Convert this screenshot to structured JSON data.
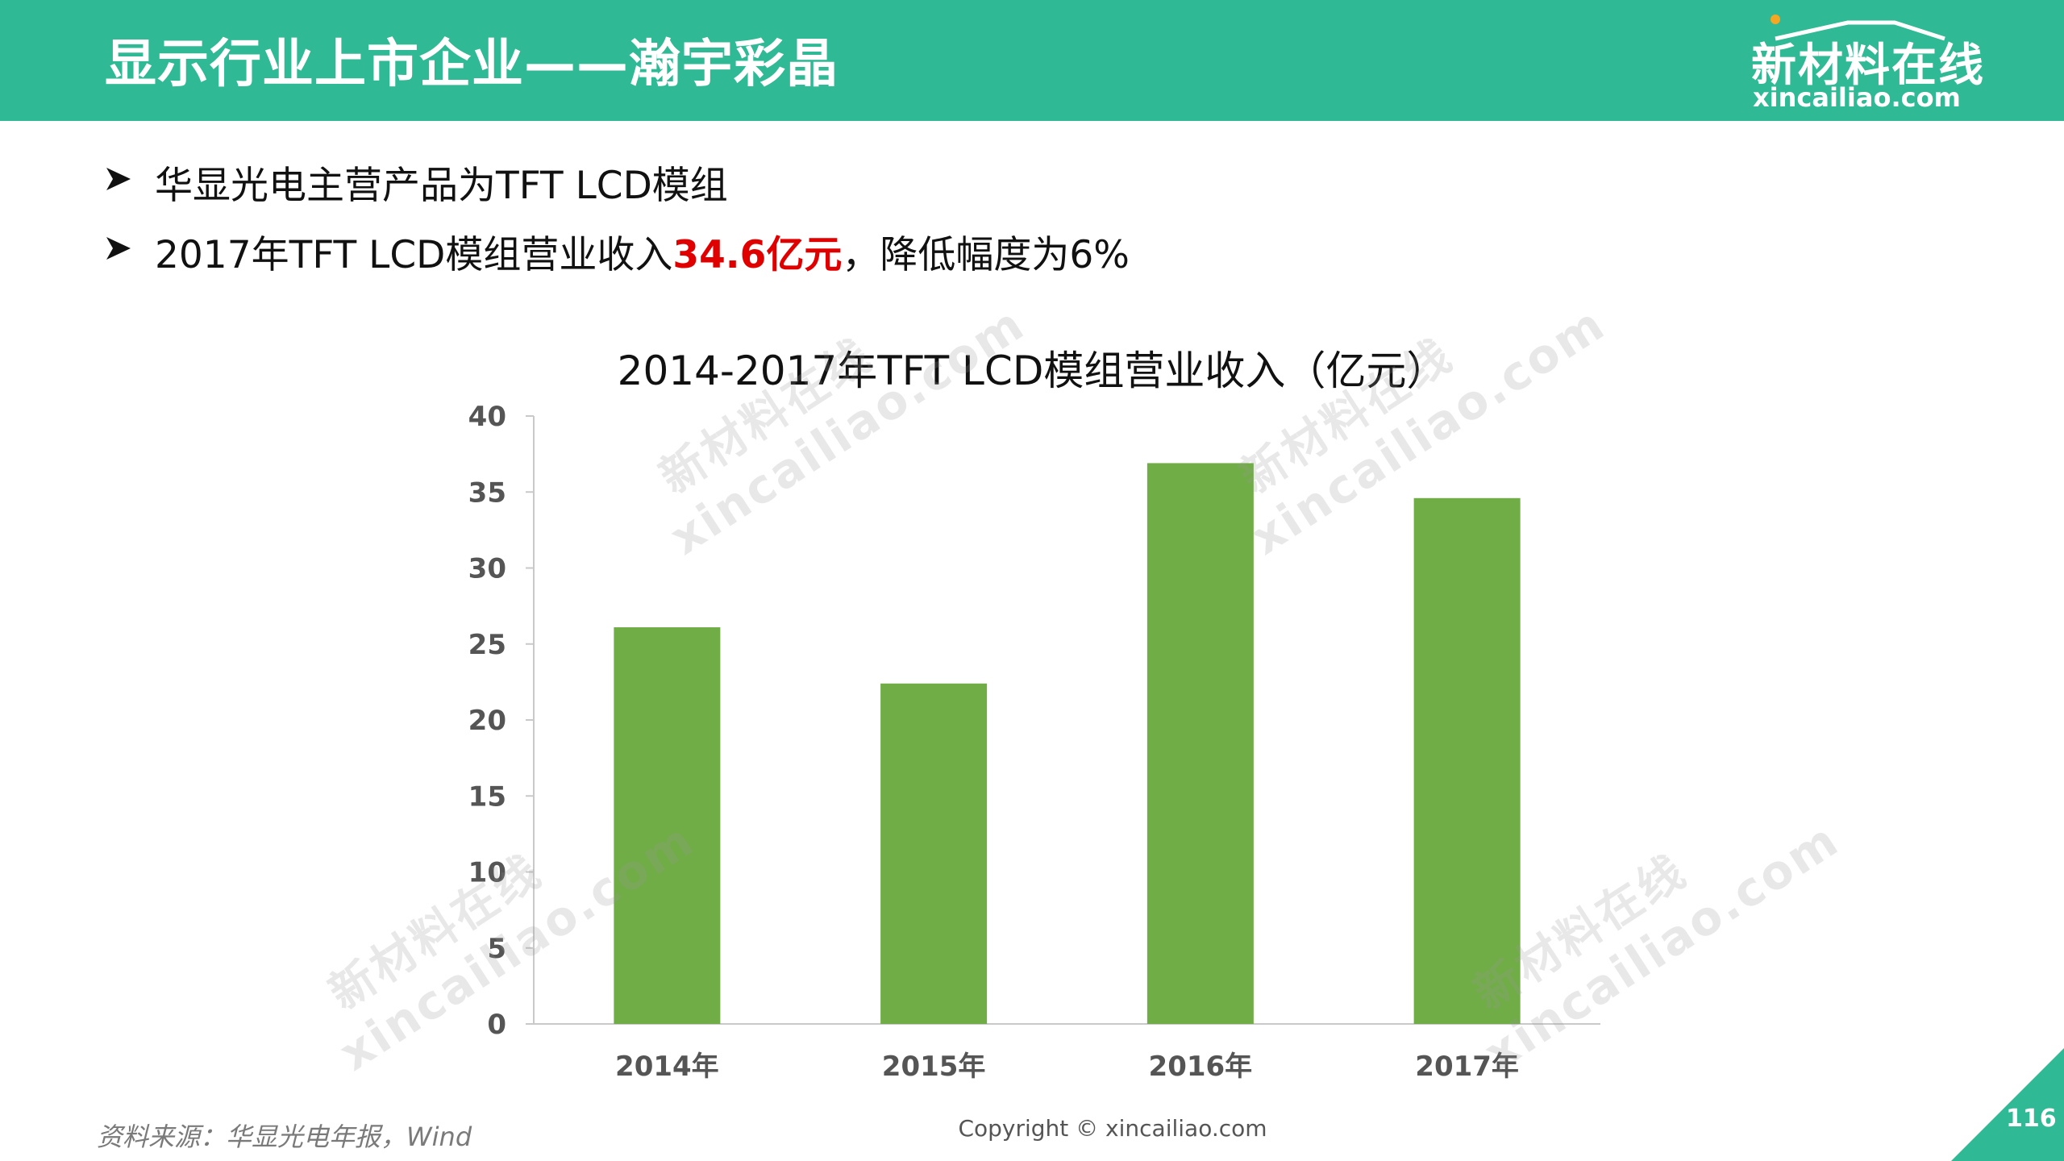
{
  "header": {
    "title": "显示行业上市企业——瀚宇彩晶"
  },
  "logo": {
    "cn": "新材料在线",
    "en": "xincailiao.com"
  },
  "bullets": [
    {
      "text": "华显光电主营产品为TFT LCD模组"
    },
    {
      "prefix": "2017年TFT LCD模组营业收入",
      "highlight": "34.6亿元",
      "suffix": "，降低幅度为6%"
    }
  ],
  "chart_data": {
    "type": "bar",
    "title": "2014-2017年TFT LCD模组营业收入（亿元）",
    "categories": [
      "2014年",
      "2015年",
      "2016年",
      "2017年"
    ],
    "values": [
      26.1,
      22.4,
      36.9,
      34.6
    ],
    "ylim": [
      0,
      40
    ],
    "yticks": [
      0,
      5,
      10,
      15,
      20,
      25,
      30,
      35,
      40
    ],
    "bar_color": "#70ad47",
    "grid": false,
    "xlabel": "",
    "ylabel": ""
  },
  "footer": {
    "source": "资料来源：华显光电年报，Wind",
    "copyright": "Copyright © xincailiao.com",
    "page": "116"
  },
  "watermark": {
    "cn": "新材料在线",
    "en": "xincailiao.com"
  },
  "colors": {
    "brand": "#2fb994",
    "highlight": "#e00000"
  }
}
